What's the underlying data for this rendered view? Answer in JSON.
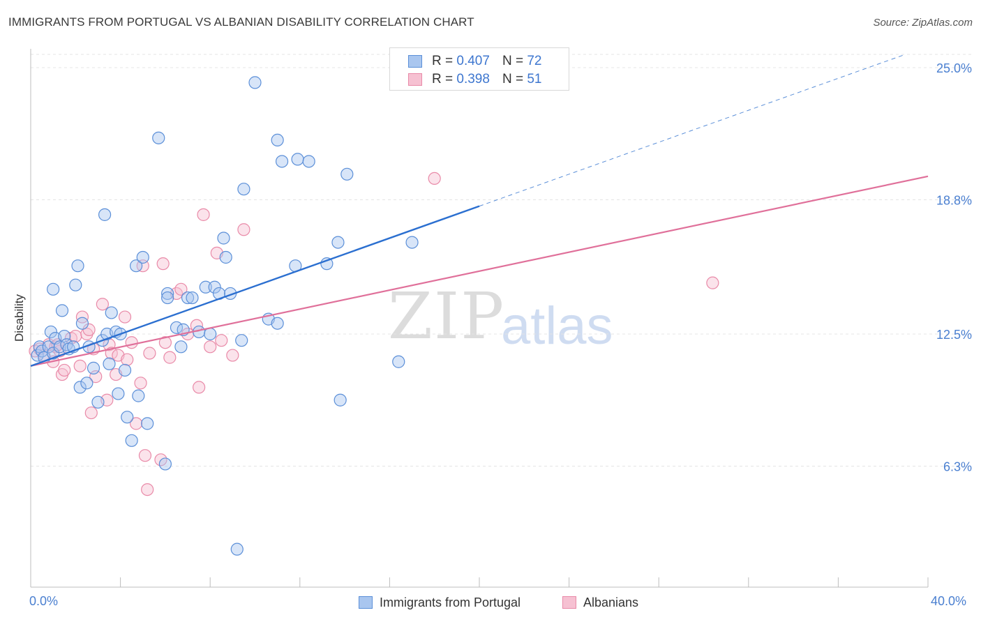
{
  "title": "IMMIGRANTS FROM PORTUGAL VS ALBANIAN DISABILITY CORRELATION CHART",
  "source": "Source: ZipAtlas.com",
  "watermark": {
    "zip": "ZIP",
    "atlas": "atlas"
  },
  "colors": {
    "blue_fill": "#a9c6ef",
    "blue_stroke": "#5b8fd8",
    "blue_line": "#2b6fd0",
    "pink_fill": "#f6c1d2",
    "pink_stroke": "#e98aa8",
    "pink_line": "#e0709a",
    "tick_text": "#4a7fd0",
    "grid": "#e4e4e4"
  },
  "legend": {
    "rows": [
      {
        "r_label": "R =",
        "r_value": "0.407",
        "n_label": "N =",
        "n_value": "72"
      },
      {
        "r_label": "R =",
        "r_value": "0.398",
        "n_label": "N =",
        "n_value": "51"
      }
    ]
  },
  "chart_data": {
    "type": "scatter",
    "title": "IMMIGRANTS FROM PORTUGAL VS ALBANIAN DISABILITY CORRELATION CHART",
    "xlabel": "",
    "ylabel": "Disability",
    "xlim": [
      0,
      40
    ],
    "ylim": [
      0,
      26
    ],
    "x_tick_labels": [
      "0.0%",
      "40.0%"
    ],
    "y_ticks": [
      6.3,
      12.5,
      18.8,
      25.0
    ],
    "y_tick_labels": [
      "6.3%",
      "12.5%",
      "18.8%",
      "25.0%"
    ],
    "grid": "horizontal dashed",
    "legend_position": "top-center",
    "series": [
      {
        "name": "Immigrants from Portugal",
        "color": "#a9c6ef",
        "trend": {
          "x0": 0,
          "y0": 11.0,
          "x1": 20,
          "y1": 18.5,
          "dashed_to": [
            40,
            26.0
          ]
        },
        "points": [
          [
            0.3,
            11.5
          ],
          [
            0.4,
            11.9
          ],
          [
            0.5,
            11.7
          ],
          [
            0.6,
            11.4
          ],
          [
            0.8,
            11.9
          ],
          [
            0.9,
            12.6
          ],
          [
            1.0,
            11.6
          ],
          [
            1.0,
            14.6
          ],
          [
            1.1,
            12.3
          ],
          [
            1.3,
            11.9
          ],
          [
            1.4,
            13.6
          ],
          [
            1.5,
            12.4
          ],
          [
            1.6,
            12.0
          ],
          [
            1.7,
            11.8
          ],
          [
            1.9,
            11.9
          ],
          [
            2.0,
            14.8
          ],
          [
            2.1,
            15.7
          ],
          [
            2.2,
            10.0
          ],
          [
            2.3,
            13.0
          ],
          [
            2.5,
            10.2
          ],
          [
            2.6,
            11.9
          ],
          [
            2.8,
            10.9
          ],
          [
            3.0,
            9.3
          ],
          [
            3.2,
            12.2
          ],
          [
            3.3,
            18.1
          ],
          [
            3.4,
            12.5
          ],
          [
            3.5,
            11.1
          ],
          [
            3.6,
            13.5
          ],
          [
            3.8,
            12.6
          ],
          [
            3.9,
            9.7
          ],
          [
            4.0,
            12.5
          ],
          [
            4.2,
            10.8
          ],
          [
            4.3,
            8.6
          ],
          [
            4.5,
            7.5
          ],
          [
            4.7,
            15.7
          ],
          [
            4.8,
            9.6
          ],
          [
            5.0,
            16.1
          ],
          [
            5.2,
            8.3
          ],
          [
            5.7,
            21.7
          ],
          [
            6.0,
            6.4
          ],
          [
            6.1,
            14.4
          ],
          [
            6.5,
            12.8
          ],
          [
            6.7,
            11.9
          ],
          [
            6.8,
            12.7
          ],
          [
            7.0,
            14.2
          ],
          [
            7.2,
            14.2
          ],
          [
            7.5,
            12.6
          ],
          [
            7.8,
            14.7
          ],
          [
            8.0,
            12.5
          ],
          [
            8.2,
            14.7
          ],
          [
            8.4,
            14.4
          ],
          [
            8.6,
            17.0
          ],
          [
            8.7,
            16.1
          ],
          [
            8.9,
            14.4
          ],
          [
            9.2,
            2.4
          ],
          [
            9.4,
            12.2
          ],
          [
            9.5,
            19.3
          ],
          [
            10.0,
            24.3
          ],
          [
            10.6,
            13.2
          ],
          [
            11.0,
            13.0
          ],
          [
            11.0,
            21.6
          ],
          [
            11.2,
            20.6
          ],
          [
            11.8,
            15.7
          ],
          [
            11.9,
            20.7
          ],
          [
            12.4,
            20.6
          ],
          [
            13.2,
            15.8
          ],
          [
            13.7,
            16.8
          ],
          [
            13.8,
            9.4
          ],
          [
            14.1,
            20.0
          ],
          [
            16.4,
            11.2
          ],
          [
            17.0,
            16.8
          ],
          [
            6.1,
            14.2
          ]
        ]
      },
      {
        "name": "Albanians",
        "color": "#f6c1d2",
        "trend": {
          "x0": 0,
          "y0": 11.0,
          "x1": 40,
          "y1": 19.9
        },
        "points": [
          [
            0.2,
            11.7
          ],
          [
            0.4,
            11.8
          ],
          [
            0.6,
            11.5
          ],
          [
            0.8,
            12.0
          ],
          [
            1.0,
            11.2
          ],
          [
            1.1,
            11.9
          ],
          [
            1.3,
            11.7
          ],
          [
            1.4,
            10.6
          ],
          [
            1.5,
            10.8
          ],
          [
            1.8,
            12.3
          ],
          [
            2.0,
            12.4
          ],
          [
            2.2,
            11.0
          ],
          [
            2.3,
            13.3
          ],
          [
            2.5,
            12.5
          ],
          [
            2.6,
            12.7
          ],
          [
            2.7,
            8.8
          ],
          [
            2.8,
            11.8
          ],
          [
            2.9,
            10.5
          ],
          [
            3.2,
            13.9
          ],
          [
            3.4,
            9.4
          ],
          [
            3.5,
            12.0
          ],
          [
            3.6,
            11.6
          ],
          [
            3.8,
            10.6
          ],
          [
            3.9,
            11.5
          ],
          [
            4.2,
            13.3
          ],
          [
            4.3,
            11.3
          ],
          [
            4.5,
            12.1
          ],
          [
            4.7,
            8.3
          ],
          [
            4.9,
            10.2
          ],
          [
            5.0,
            15.7
          ],
          [
            5.1,
            6.8
          ],
          [
            5.2,
            5.2
          ],
          [
            5.3,
            11.6
          ],
          [
            5.8,
            6.6
          ],
          [
            5.9,
            15.8
          ],
          [
            6.0,
            12.1
          ],
          [
            6.2,
            11.4
          ],
          [
            6.5,
            14.4
          ],
          [
            6.7,
            14.6
          ],
          [
            7.0,
            12.5
          ],
          [
            7.4,
            12.9
          ],
          [
            7.5,
            10.0
          ],
          [
            7.7,
            18.1
          ],
          [
            8.0,
            11.9
          ],
          [
            8.3,
            16.3
          ],
          [
            8.5,
            12.2
          ],
          [
            9.0,
            11.5
          ],
          [
            9.5,
            17.4
          ],
          [
            18.0,
            19.8
          ],
          [
            30.4,
            14.9
          ],
          [
            1.2,
            12.0
          ]
        ]
      }
    ]
  },
  "bottom_legend": [
    {
      "label": "Immigrants from Portugal"
    },
    {
      "label": "Albanians"
    }
  ]
}
